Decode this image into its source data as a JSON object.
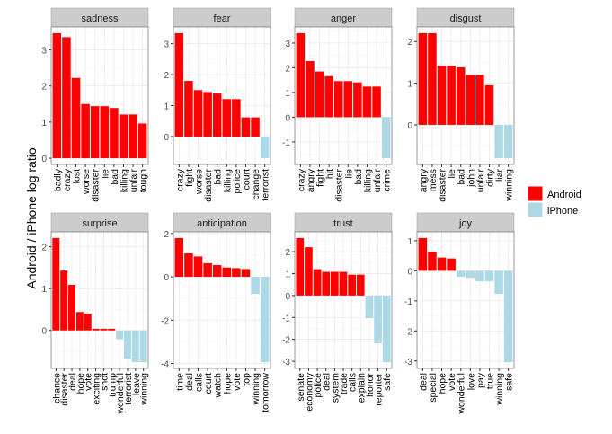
{
  "chart_data": {
    "type": "bar",
    "layout": "faceted 2x4 grid, free y scales",
    "ylabel": "Android / iPhone log ratio",
    "xlabel": "",
    "grid": true,
    "legend_position": "right",
    "legend": [
      {
        "name": "Android",
        "color": "#ff0000"
      },
      {
        "name": "iPhone",
        "color": "#add8e6"
      }
    ],
    "facets": [
      {
        "name": "sadness",
        "ticks": [
          0,
          1,
          2,
          3
        ],
        "categories": [
          "badly",
          "crazy",
          "lost",
          "worse",
          "disaster",
          "lie",
          "bad",
          "killing",
          "unfair",
          "tough"
        ],
        "values": [
          3.46,
          3.35,
          2.22,
          1.5,
          1.44,
          1.44,
          1.39,
          1.21,
          1.21,
          0.96
        ]
      },
      {
        "name": "fear",
        "ticks": [
          0,
          1,
          2,
          3
        ],
        "categories": [
          "crazy",
          "fight",
          "worse",
          "disaster",
          "bad",
          "killing",
          "police",
          "court",
          "change",
          "terrorist"
        ],
        "values": [
          3.34,
          1.8,
          1.5,
          1.44,
          1.39,
          1.21,
          1.21,
          0.62,
          0.62,
          -0.7
        ]
      },
      {
        "name": "anger",
        "ticks": [
          -1,
          0,
          1,
          2,
          3
        ],
        "categories": [
          "crazy",
          "angry",
          "fight",
          "hit",
          "disaster",
          "lie",
          "bad",
          "killing",
          "unfair",
          "crime"
        ],
        "values": [
          3.4,
          2.27,
          1.85,
          1.66,
          1.46,
          1.46,
          1.41,
          1.24,
          1.24,
          -1.66
        ]
      },
      {
        "name": "disgust",
        "ticks": [
          0,
          1,
          2
        ],
        "categories": [
          "angry",
          "mess",
          "disaster",
          "lie",
          "bad",
          "john",
          "unfair",
          "dirty",
          "liar",
          "winning"
        ],
        "values": [
          2.2,
          2.2,
          1.42,
          1.42,
          1.38,
          1.2,
          1.2,
          0.95,
          -0.8,
          -0.8
        ]
      },
      {
        "name": "surprise",
        "ticks": [
          0,
          1,
          2
        ],
        "categories": [
          "chance",
          "disaster",
          "deal",
          "hope",
          "vote",
          "exciting",
          "shot",
          "trump",
          "wonderful",
          "terrorist",
          "leave",
          "winning"
        ],
        "values": [
          2.21,
          1.43,
          1.09,
          0.44,
          0.4,
          0.04,
          0.04,
          0.04,
          -0.21,
          -0.68,
          -0.76,
          -0.76
        ]
      },
      {
        "name": "anticipation",
        "ticks": [
          -4,
          -2,
          0,
          2
        ],
        "categories": [
          "time",
          "deal",
          "calls",
          "court",
          "watch",
          "hope",
          "vote",
          "top",
          "winning",
          "tomorrow"
        ],
        "values": [
          1.79,
          1.08,
          0.94,
          0.63,
          0.54,
          0.43,
          0.4,
          0.36,
          -0.79,
          -3.94
        ]
      },
      {
        "name": "trust",
        "ticks": [
          -3,
          -2,
          -1,
          0,
          1,
          2
        ],
        "categories": [
          "senate",
          "economy",
          "police",
          "deal",
          "system",
          "trade",
          "calls",
          "explain",
          "honor",
          "reporter",
          "safe"
        ],
        "values": [
          2.62,
          2.2,
          1.2,
          1.08,
          1.08,
          1.08,
          0.95,
          0.95,
          -1.03,
          -2.18,
          -3.04
        ]
      },
      {
        "name": "joy",
        "ticks": [
          -3,
          -2,
          -1,
          0,
          1
        ],
        "categories": [
          "deal",
          "special",
          "hope",
          "vote",
          "wonderful",
          "love",
          "pay",
          "true",
          "winning",
          "safe"
        ],
        "values": [
          1.09,
          0.64,
          0.44,
          0.41,
          -0.2,
          -0.23,
          -0.35,
          -0.35,
          -0.77,
          -3.04
        ]
      }
    ]
  }
}
